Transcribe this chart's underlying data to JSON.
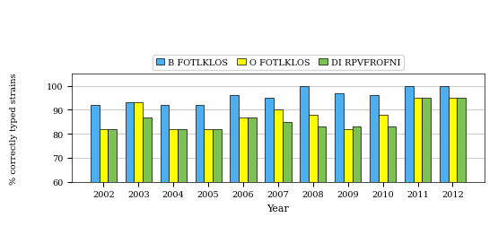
{
  "years": [
    "2002",
    "2003",
    "2004",
    "2005",
    "2006",
    "2007",
    "2008",
    "2009",
    "2010",
    "2011",
    "2012"
  ],
  "series_labels": [
    "B FOTLKLOS",
    "O FOTLKLOS",
    "DI RPVFROFNI"
  ],
  "series_colors": [
    "#4DAFEF",
    "#FFFF00",
    "#7DC053"
  ],
  "series_data": {
    "B FOTLKLOS": [
      92,
      93,
      92,
      92,
      96,
      95,
      100,
      97,
      96,
      100,
      100
    ],
    "O FOTLKLOS": [
      82,
      93,
      82,
      82,
      87,
      90,
      88,
      82,
      88,
      95,
      95
    ],
    "DI RPVFROFNI": [
      82,
      87,
      82,
      82,
      87,
      85,
      83,
      83,
      83,
      95,
      95
    ]
  },
  "ylim": [
    60,
    105
  ],
  "yticks": [
    60,
    70,
    80,
    90,
    100
  ],
  "ytick_labels": [
    "60",
    "70",
    "80",
    "90",
    "100"
  ],
  "ylabel": "% correctly typed strains",
  "xlabel": "Year",
  "bar_width": 0.25,
  "bg_color": "#FFFFFF",
  "grid_color": "#CCCCCC",
  "font_family": "DejaVu Serif"
}
